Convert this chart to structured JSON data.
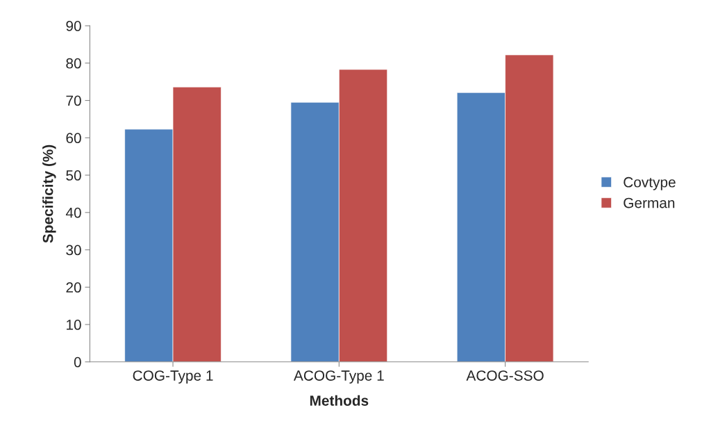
{
  "chart_data": {
    "type": "bar",
    "xlabel": "Methods",
    "ylabel": "Specificity (%)",
    "categories": [
      "COG-Type 1",
      "ACOG-Type 1",
      "ACOG-SSO"
    ],
    "series": [
      {
        "name": "Covtype",
        "color": "#4f81bd",
        "values": [
          62.3,
          69.5,
          72.1
        ]
      },
      {
        "name": "German",
        "color": "#c0504d",
        "values": [
          73.6,
          78.3,
          82.2
        ]
      }
    ],
    "ylim": [
      0,
      90
    ],
    "yticks": [
      0,
      10,
      20,
      30,
      40,
      50,
      60,
      70,
      80,
      90
    ],
    "grid": false,
    "legend": "right"
  }
}
